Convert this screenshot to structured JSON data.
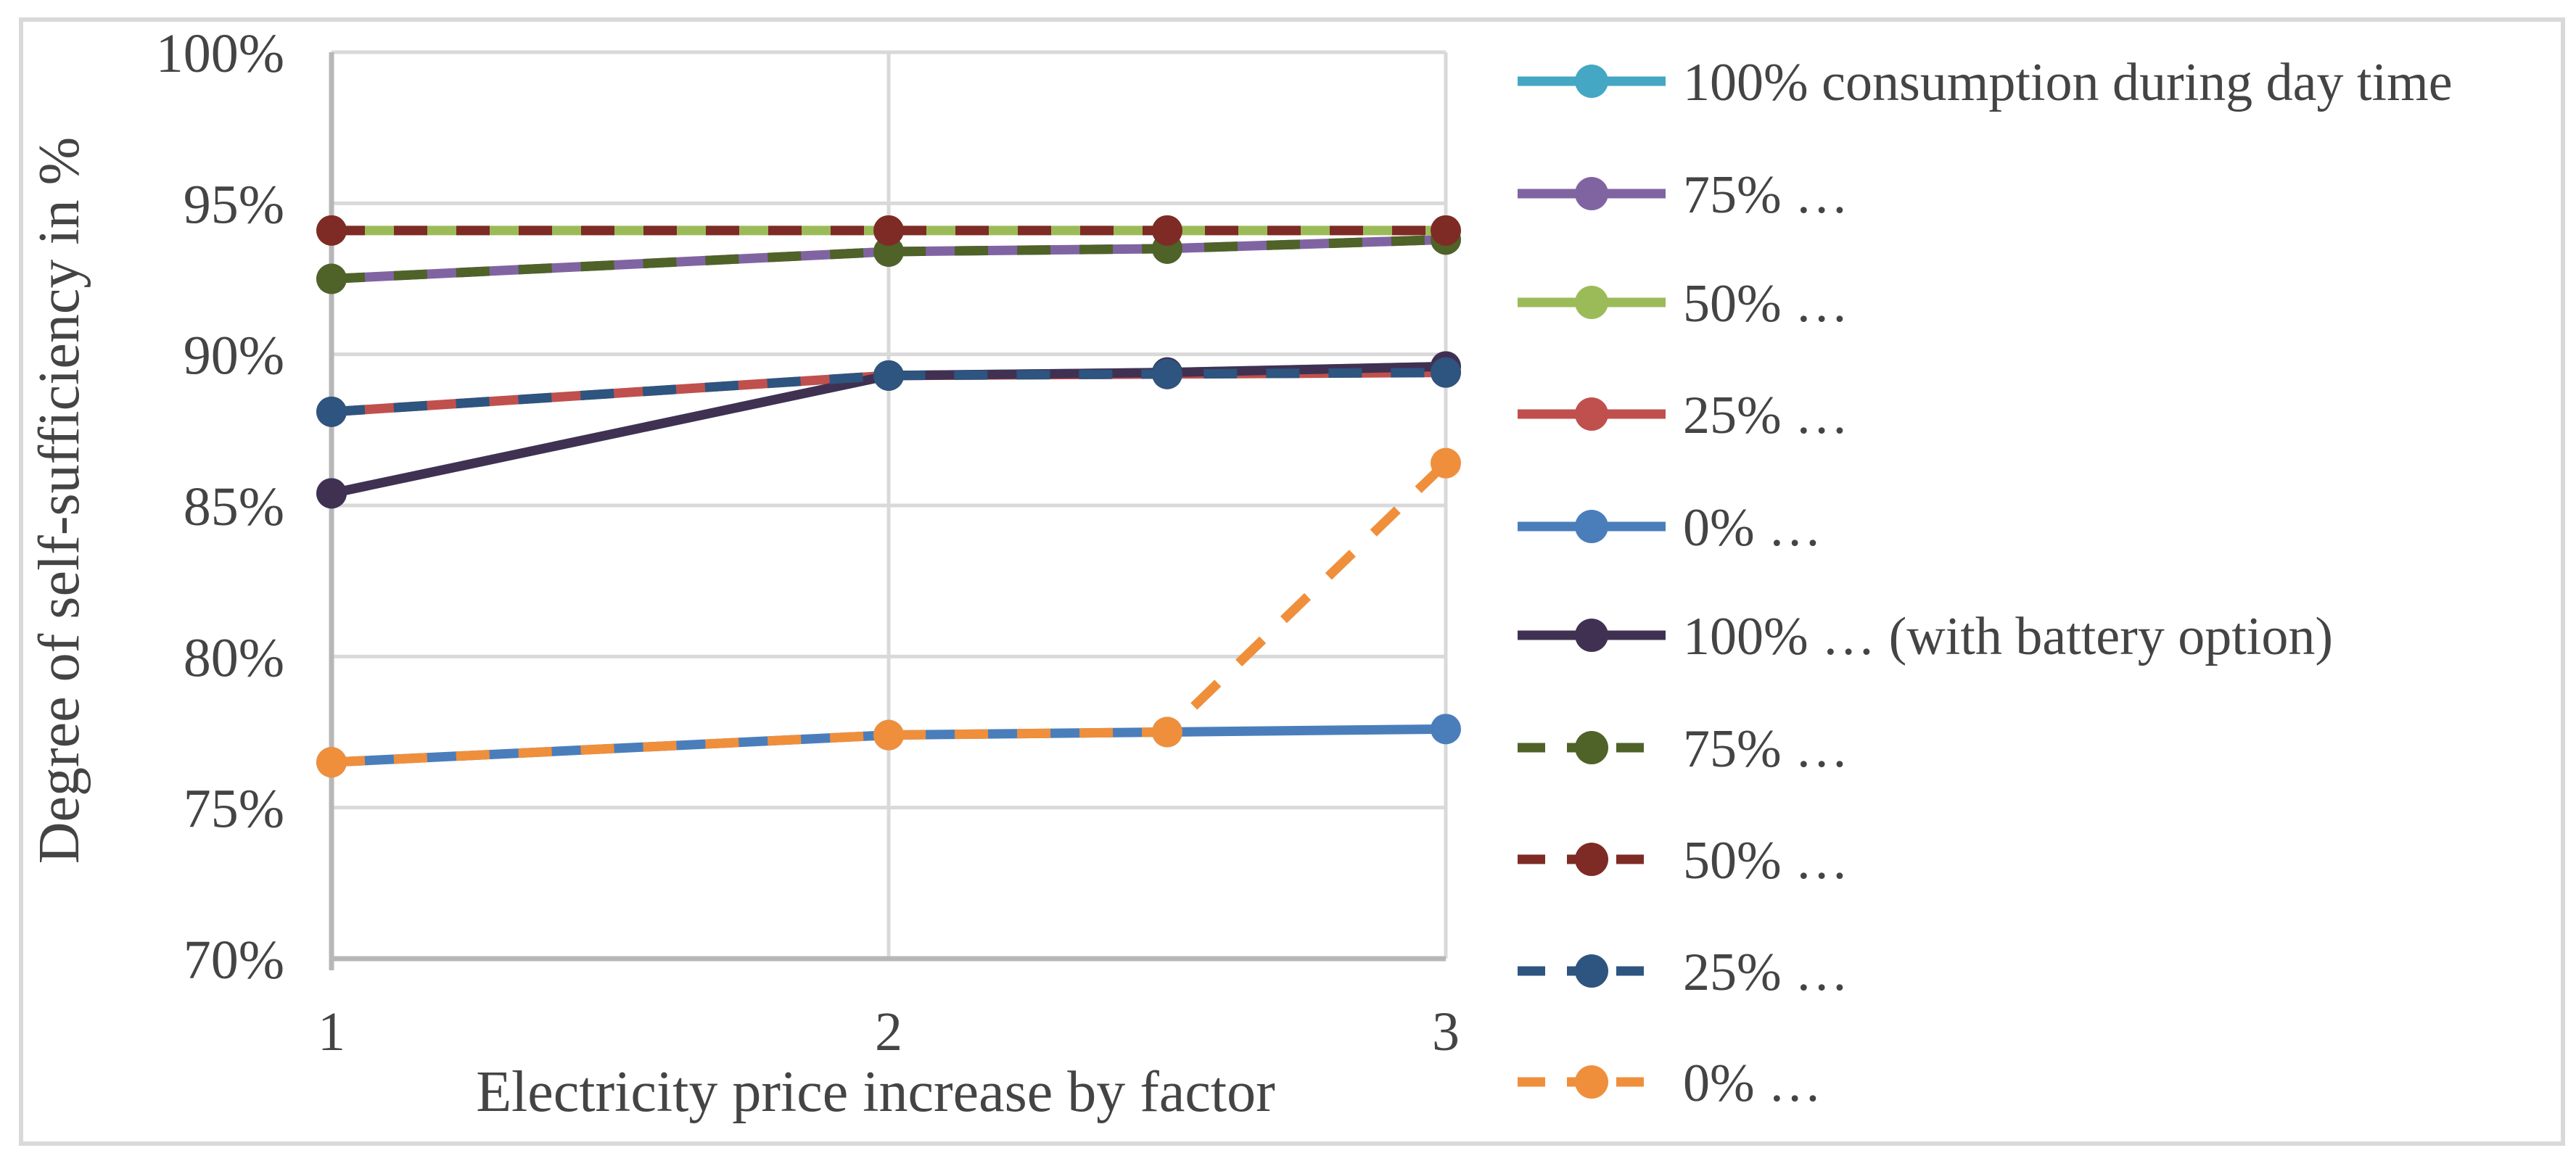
{
  "chart_data": {
    "type": "line",
    "title": "",
    "xlabel": "Electricity price increase by factor",
    "ylabel": "Degree of self-sufficiency in %",
    "x": [
      1,
      2,
      2.5,
      3
    ],
    "xlim": [
      1,
      3
    ],
    "ylim": [
      70,
      100
    ],
    "x_tick_values": [
      1,
      2,
      3
    ],
    "x_tick_labels": [
      "1",
      "2",
      "3"
    ],
    "y_tick_values": [
      70,
      75,
      80,
      85,
      90,
      95,
      100
    ],
    "y_tick_labels": [
      "70%",
      "75%",
      "80%",
      "85%",
      "90%",
      "95%",
      "100%"
    ],
    "grid": true,
    "legend_position": "right",
    "series": [
      {
        "name": "100% consumption during day time",
        "color": "#44a7c4",
        "line_style": "solid",
        "marker": "circle",
        "values": [
          85.4,
          89.3,
          89.4,
          89.6
        ],
        "visibility": "fully overlapped in plot by the '100% … (with battery option)' series"
      },
      {
        "name": "75% …",
        "color": "#8064a2",
        "line_style": "solid",
        "marker": "circle",
        "values": [
          92.5,
          93.4,
          93.5,
          93.8
        ]
      },
      {
        "name": "50% …",
        "color": "#9bbb59",
        "line_style": "solid",
        "marker": "circle",
        "values": [
          94.1,
          94.1,
          94.1,
          94.1
        ]
      },
      {
        "name": "25% …",
        "color": "#c0504d",
        "line_style": "solid",
        "marker": "circle",
        "values": [
          88.1,
          89.3,
          89.35,
          89.4
        ]
      },
      {
        "name": "0% …",
        "color": "#4a7ebb",
        "line_style": "solid",
        "marker": "circle",
        "values": [
          76.5,
          77.4,
          77.5,
          77.6
        ]
      },
      {
        "name": "100% … (with battery option)",
        "color": "#403152",
        "line_style": "solid",
        "marker": "circle",
        "values": [
          85.4,
          89.3,
          89.4,
          89.6
        ]
      },
      {
        "name": "75% …",
        "color": "#4f6228",
        "line_style": "dashed",
        "marker": "circle",
        "values": [
          92.5,
          93.4,
          93.5,
          93.8
        ]
      },
      {
        "name": "50% …",
        "color": "#7e2b25",
        "line_style": "dashed",
        "marker": "circle",
        "values": [
          94.1,
          94.1,
          94.1,
          94.1
        ]
      },
      {
        "name": "25% …",
        "color": "#2e5480",
        "line_style": "dashed",
        "marker": "circle",
        "values": [
          88.1,
          89.3,
          89.35,
          89.4
        ]
      },
      {
        "name": "0% …",
        "color": "#ef8f3c",
        "line_style": "dashed",
        "marker": "circle",
        "values": [
          76.5,
          77.4,
          77.5,
          86.4
        ]
      }
    ],
    "styles": {
      "grid_color": "#d9d9d9",
      "axis_color": "#b7b7b7",
      "text_color": "#444444",
      "background": "#ffffff",
      "border_color": "#d9d9d9"
    }
  }
}
